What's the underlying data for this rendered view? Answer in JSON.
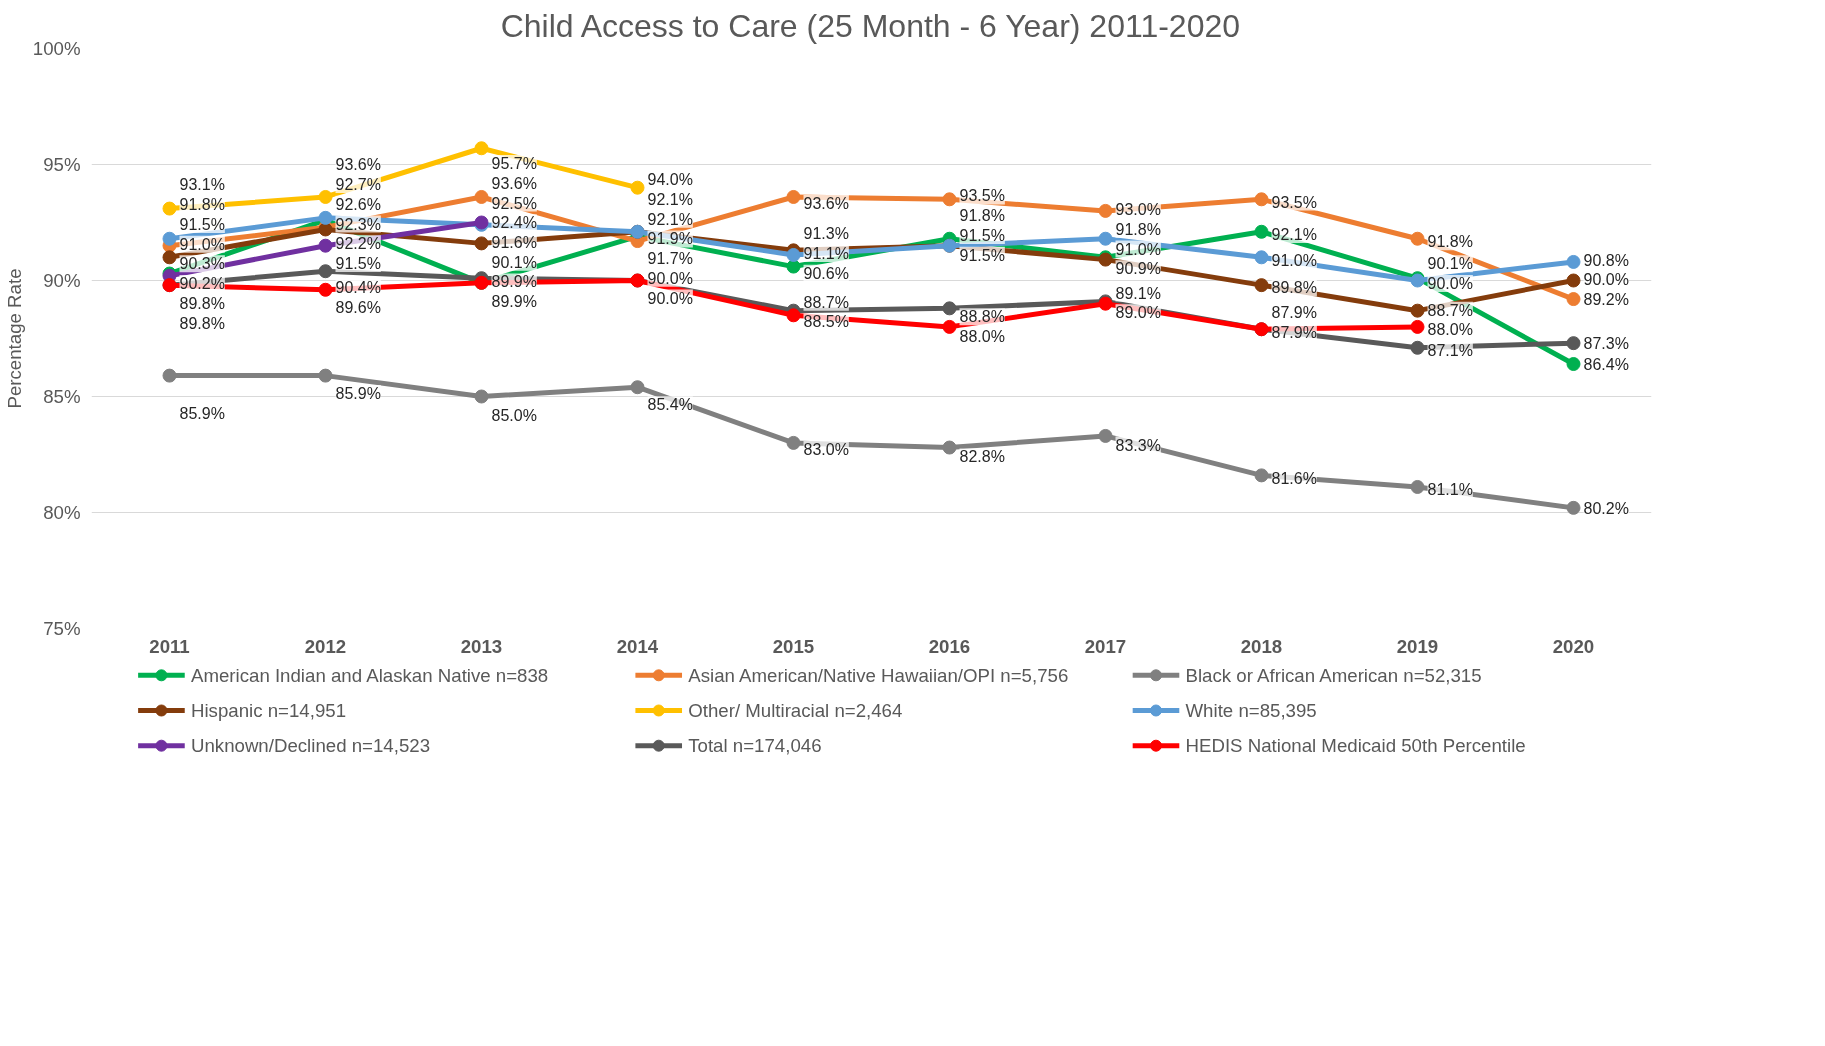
{
  "chart_data": {
    "type": "line",
    "title": "Child Access to Care (25 Month - 6 Year) 2011-2020",
    "ylabel": "Percentage Rate",
    "categories": [
      "2011",
      "2012",
      "2013",
      "2014",
      "2015",
      "2016",
      "2017",
      "2018",
      "2019",
      "2020"
    ],
    "ylim": [
      75,
      100
    ],
    "yticks": [
      {
        "value": 75,
        "label": "75%"
      },
      {
        "value": 80,
        "label": "80%"
      },
      {
        "value": 85,
        "label": "85%"
      },
      {
        "value": 90,
        "label": "90%"
      },
      {
        "value": 95,
        "label": "95%"
      },
      {
        "value": 100,
        "label": "100%"
      }
    ],
    "grid": "y",
    "legend": "bottom",
    "marker": "circle",
    "line_style": "solid",
    "data_labels": true,
    "series": [
      {
        "name": "American Indian and Alaskan Native n=838",
        "color": "#00b050",
        "values": [
          90.3,
          92.6,
          89.9,
          91.9,
          90.6,
          91.8,
          91.0,
          92.1,
          90.1,
          86.4
        ],
        "value_labels": [
          "90.3%",
          "92.6%",
          "89.9%",
          "91.9%",
          "90.6%",
          "91.8%",
          "91.0%",
          "92.1%",
          "90.1%",
          "86.4%"
        ]
      },
      {
        "name": "Asian American/Native Hawaiian/OPI n=5,756",
        "color": "#ed7d31",
        "values": [
          91.5,
          92.3,
          93.6,
          91.7,
          93.6,
          93.5,
          93.0,
          93.5,
          91.8,
          89.2
        ],
        "value_labels": [
          "91.5%",
          "92.3%",
          "93.6%",
          "91.7%",
          "93.6%",
          "93.5%",
          "93.0%",
          "93.5%",
          "91.8%",
          "89.2%"
        ]
      },
      {
        "name": "Black or African American n=52,315",
        "color": "#808080",
        "values": [
          85.9,
          85.9,
          85.0,
          85.4,
          83.0,
          82.8,
          83.3,
          81.6,
          81.1,
          80.2
        ],
        "value_labels": [
          "85.9%",
          "85.9%",
          "85.0%",
          "85.4%",
          "83.0%",
          "82.8%",
          "83.3%",
          "81.6%",
          "81.1%",
          "80.2%"
        ]
      },
      {
        "name": "Hispanic n=14,951",
        "color": "#843c0c",
        "values": [
          91.0,
          92.2,
          91.6,
          92.1,
          91.3,
          91.5,
          90.9,
          89.8,
          88.7,
          90.0
        ],
        "value_labels": [
          "91.0%",
          "92.2%",
          "91.6%",
          "92.1%",
          "91.3%",
          "91.5%",
          "90.9%",
          "89.8%",
          "88.7%",
          "90.0%"
        ]
      },
      {
        "name": "Other/ Multiracial n=2,464",
        "color": "#ffc000",
        "values": [
          93.1,
          93.6,
          95.7,
          94.0,
          null,
          null,
          null,
          null,
          null,
          null
        ],
        "value_labels": [
          "93.1%",
          "93.6%",
          "95.7%",
          "94.0%",
          null,
          null,
          null,
          null,
          null,
          null
        ]
      },
      {
        "name": "White n=85,395",
        "color": "#5b9bd5",
        "values": [
          91.8,
          92.7,
          92.4,
          92.1,
          91.1,
          91.5,
          91.8,
          91.0,
          90.0,
          90.8
        ],
        "value_labels": [
          "91.8%",
          "92.7%",
          "92.4%",
          "92.1%",
          "91.1%",
          "91.5%",
          "91.8%",
          "91.0%",
          "90.0%",
          "90.8%"
        ]
      },
      {
        "name": "Unknown/Declined n=14,523",
        "color": "#7030a0",
        "values": [
          90.2,
          91.5,
          92.5,
          null,
          null,
          null,
          null,
          null,
          null,
          null
        ],
        "value_labels": [
          "90.2%",
          "91.5%",
          "92.5%",
          null,
          null,
          null,
          null,
          null,
          null,
          null
        ]
      },
      {
        "name": "Total n=174,046",
        "color": "#595959",
        "values": [
          89.8,
          90.4,
          90.1,
          90.0,
          88.7,
          88.8,
          89.1,
          87.9,
          87.1,
          87.3
        ],
        "value_labels": [
          "89.8%",
          "90.4%",
          "90.1%",
          "90.0%",
          "88.7%",
          "88.8%",
          "89.1%",
          "87.9%",
          "87.1%",
          "87.3%"
        ]
      },
      {
        "name": "HEDIS National Medicaid 50th Percentile",
        "color": "#ff0000",
        "values": [
          89.8,
          89.6,
          89.9,
          90.0,
          88.5,
          88.0,
          89.0,
          87.9,
          88.0,
          null
        ],
        "value_labels": [
          "89.8%",
          "89.6%",
          "89.9%",
          "90.0%",
          "88.5%",
          "88.0%",
          "89.0%",
          "87.9%",
          "88.0%",
          null
        ]
      }
    ]
  }
}
